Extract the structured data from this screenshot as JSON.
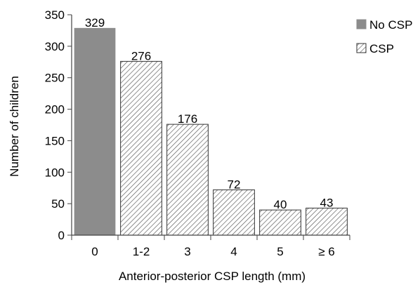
{
  "chart_data": {
    "type": "bar",
    "title": "",
    "xlabel": "Anterior-posterior CSP length (mm)",
    "ylabel": "Number of children",
    "categories": [
      "0",
      "1-2",
      "3",
      "4",
      "5",
      "≥ 6"
    ],
    "values": [
      329,
      276,
      176,
      72,
      40,
      43
    ],
    "data_labels": [
      "329",
      "276",
      "176",
      "72",
      "40",
      "43"
    ],
    "bar_styles": [
      "solid",
      "hatched",
      "hatched",
      "hatched",
      "hatched",
      "hatched"
    ],
    "ylim": [
      0,
      350
    ],
    "yticks": [
      0,
      50,
      100,
      150,
      200,
      250,
      300,
      350
    ],
    "grid": false,
    "legend_position": "top-right",
    "legend": [
      {
        "label": "No CSP",
        "style": "solid"
      },
      {
        "label": "CSP",
        "style": "hatched"
      }
    ],
    "colors": {
      "solid_fill": "#8c8c8c",
      "hatch_line": "#555555",
      "bar_border": "#333333",
      "axis": "#444444"
    }
  }
}
